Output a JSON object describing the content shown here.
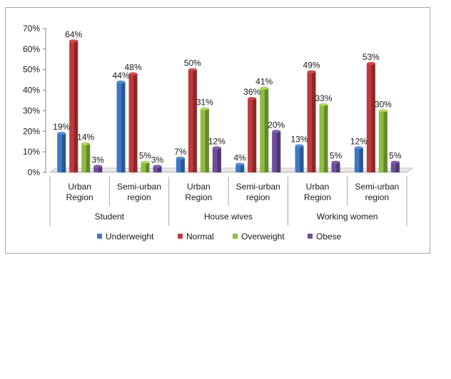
{
  "chart_data": {
    "type": "bar",
    "title": "",
    "xlabel": "",
    "ylabel": "",
    "ylim": [
      0,
      70
    ],
    "yticks": [
      "0%",
      "10%",
      "20%",
      "30%",
      "40%",
      "50%",
      "60%",
      "70%"
    ],
    "groups": [
      {
        "label": "Student",
        "categories": [
          "Urban Region",
          "Semi-urban region"
        ]
      },
      {
        "label": "House wives",
        "categories": [
          "Urban Region",
          "Semi-urban region"
        ]
      },
      {
        "label": "Working women",
        "categories": [
          "Urban Region",
          "Semi-urban region"
        ]
      }
    ],
    "category_lines": [
      [
        "Urban",
        "Region"
      ],
      [
        "Semi-urban",
        "region"
      ],
      [
        "Urban",
        "Region"
      ],
      [
        "Semi-urban",
        "region"
      ],
      [
        "Urban",
        "Region"
      ],
      [
        "Semi-urban",
        "region"
      ]
    ],
    "series": [
      {
        "name": "Underweight",
        "color": "#3e79c7",
        "values": [
          19,
          44,
          7,
          4,
          13,
          12
        ],
        "labels": [
          "19%",
          "44%",
          "7%",
          "4%",
          "13%",
          "12%"
        ]
      },
      {
        "name": "Normal",
        "color": "#c0393b",
        "values": [
          64,
          48,
          50,
          36,
          49,
          53
        ],
        "labels": [
          "64%",
          "48%",
          "50%",
          "36%",
          "49%",
          "53%"
        ]
      },
      {
        "name": "Overweight",
        "color": "#8ebd3f",
        "values": [
          14,
          5,
          31,
          41,
          33,
          30
        ],
        "labels": [
          "14%",
          "5%",
          "31%",
          "41%",
          "33%",
          "30%"
        ]
      },
      {
        "name": "Obese",
        "color": "#6f4e9c",
        "values": [
          3,
          3,
          12,
          20,
          5,
          5
        ],
        "labels": [
          "3%",
          "3%",
          "12%",
          "20%",
          "5%",
          "5%"
        ]
      }
    ],
    "legend_position": "bottom",
    "grid": false
  }
}
